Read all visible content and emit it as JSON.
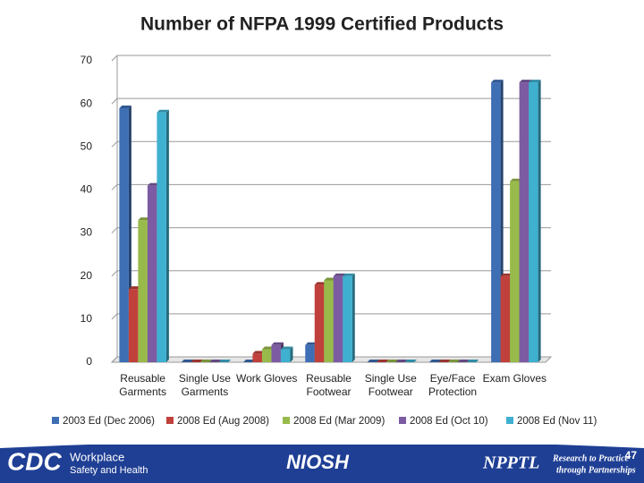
{
  "chart_data": {
    "type": "bar",
    "title": "Number of NFPA 1999 Certified Products",
    "categories": [
      "Reusable\nGarments",
      "Single Use\nGarments",
      "Work Gloves",
      "Reusable\nFootwear",
      "Single Use\nFootwear",
      "Eye/Face\nProtection",
      "Exam Gloves"
    ],
    "series": [
      {
        "name": "2003 Ed (Dec 2006)",
        "color": "#3e6fb5",
        "values": [
          59,
          0,
          0,
          4,
          0,
          0,
          65
        ]
      },
      {
        "name": "2008 Ed (Aug 2008)",
        "color": "#c0413b",
        "values": [
          17,
          0,
          2,
          18,
          0,
          0,
          20
        ]
      },
      {
        "name": "2008 Ed (Mar 2009)",
        "color": "#98ba4a",
        "values": [
          33,
          0,
          3,
          19,
          0,
          0,
          42
        ]
      },
      {
        "name": "2008 Ed (Oct 10)",
        "color": "#7c5ba3",
        "values": [
          41,
          0,
          4,
          20,
          0,
          0,
          65
        ]
      },
      {
        "name": "2008 Ed (Nov 11)",
        "color": "#3fb0cf",
        "values": [
          58,
          0,
          3,
          20,
          0,
          0,
          65
        ]
      }
    ],
    "ylim": [
      0,
      70
    ],
    "yticks": [
      0,
      10,
      20,
      30,
      40,
      50,
      60,
      70
    ],
    "grid": true,
    "legend": "bottom"
  },
  "footer": {
    "logo": "CDC",
    "logo_line1": "Workplace",
    "logo_line2": "Safety and Health",
    "center": "NIOSH",
    "right": "NPPTL",
    "right_line1": "Research to Practice",
    "right_line2": "through Partnerships",
    "page_number": "47"
  }
}
